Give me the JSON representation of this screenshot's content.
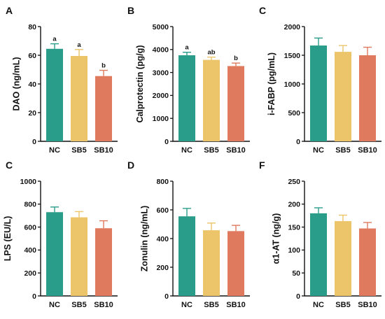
{
  "colors": {
    "NC": "#2a9d8a",
    "SB5": "#ecc56b",
    "SB10": "#e07a5f",
    "axis": "#111111"
  },
  "chart_data": [
    {
      "type": "bar",
      "panel": "A",
      "ylabel": "DAO (ng/mL)",
      "categories": [
        "NC",
        "SB5",
        "SB10"
      ],
      "values": [
        64.5,
        59.5,
        45.5
      ],
      "errors": [
        3.5,
        4.5,
        4.0
      ],
      "significance": [
        "a",
        "a",
        "b"
      ],
      "ylim": [
        0,
        80
      ],
      "yticks": [
        "0",
        "20",
        "40",
        "60",
        "80"
      ]
    },
    {
      "type": "bar",
      "panel": "B",
      "ylabel": "Calprotectin (pg/g)",
      "categories": [
        "NC",
        "SB5",
        "SB10"
      ],
      "values": [
        3750,
        3550,
        3280
      ],
      "errors": [
        130,
        120,
        130
      ],
      "significance": [
        "a",
        "ab",
        "b"
      ],
      "ylim": [
        0,
        5000
      ],
      "yticks": [
        "0",
        "1000",
        "2000",
        "3000",
        "4000",
        "5000"
      ]
    },
    {
      "type": "bar",
      "panel": "C",
      "ylabel": "i-FABP (pg/mL)",
      "categories": [
        "NC",
        "SB5",
        "SB10"
      ],
      "values": [
        1670,
        1560,
        1500
      ],
      "errors": [
        130,
        110,
        140
      ],
      "significance": [],
      "ylim": [
        0,
        2000
      ],
      "yticks": [
        "0",
        "500",
        "1000",
        "1500",
        "2000"
      ]
    },
    {
      "type": "bar",
      "panel": "C",
      "ylabel": "LPS (EU/L)",
      "categories": [
        "NC",
        "SB5",
        "SB10"
      ],
      "values": [
        730,
        685,
        590
      ],
      "errors": [
        45,
        50,
        65
      ],
      "significance": [],
      "ylim": [
        0,
        1000
      ],
      "yticks": [
        "0",
        "200",
        "400",
        "600",
        "800",
        "1000"
      ]
    },
    {
      "type": "bar",
      "panel": "D",
      "ylabel": "Zonulin (ng/mL)",
      "categories": [
        "NC",
        "SB5",
        "SB10"
      ],
      "values": [
        555,
        458,
        452
      ],
      "errors": [
        55,
        50,
        40
      ],
      "significance": [],
      "ylim": [
        0,
        800
      ],
      "yticks": [
        "0",
        "200",
        "400",
        "600",
        "800"
      ]
    },
    {
      "type": "bar",
      "panel": "F",
      "ylabel": "α1-AT (ng/g)",
      "categories": [
        "NC",
        "SB5",
        "SB10"
      ],
      "values": [
        180,
        163,
        147
      ],
      "errors": [
        12,
        13,
        13
      ],
      "significance": [],
      "ylim": [
        0,
        250
      ],
      "yticks": [
        "0",
        "50",
        "100",
        "150",
        "200",
        "250"
      ]
    }
  ]
}
